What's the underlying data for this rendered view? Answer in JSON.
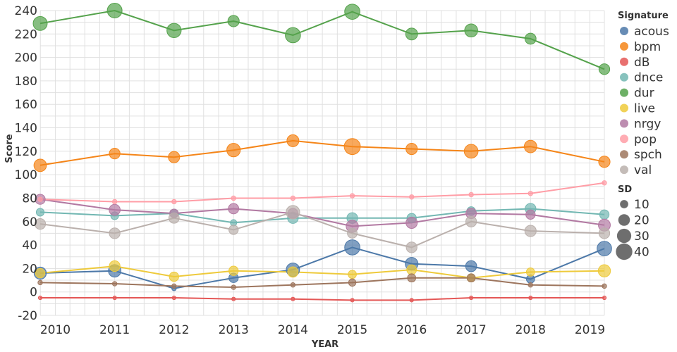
{
  "chart_data": {
    "type": "line",
    "xlabel": "YEAR",
    "ylabel": "Score",
    "ylim": [
      -20,
      240
    ],
    "y_ticks": [
      -20,
      0,
      20,
      40,
      60,
      80,
      100,
      120,
      140,
      160,
      180,
      200,
      220,
      240
    ],
    "x_ticks": [
      "2010",
      "2011",
      "2012",
      "2013",
      "2014",
      "2015",
      "2016",
      "2017",
      "2018",
      "2019"
    ],
    "grid": true,
    "legend_placement": "right",
    "color_legend_title": "Signature",
    "size_legend_title": "SD",
    "size_legend_values": [
      10,
      20,
      30,
      40
    ],
    "series": [
      {
        "name": "acous",
        "color": "#4c78a8",
        "points": [
          {
            "x": "2009-09-30",
            "y": 16,
            "sd": 22
          },
          {
            "x": "2011",
            "y": 18,
            "sd": 23
          },
          {
            "x": "2012",
            "y": 3,
            "sd": 3
          },
          {
            "x": "2013",
            "y": 12,
            "sd": 13
          },
          {
            "x": "2014",
            "y": 19,
            "sd": 26
          },
          {
            "x": "2015",
            "y": 38,
            "sd": 34
          },
          {
            "x": "2016",
            "y": 24,
            "sd": 24
          },
          {
            "x": "2017",
            "y": 22,
            "sd": 18
          },
          {
            "x": "2018",
            "y": 11,
            "sd": 10
          },
          {
            "x": "2019-03-31",
            "y": 37,
            "sd": 31
          }
        ]
      },
      {
        "name": "bpm",
        "color": "#f58518",
        "points": [
          {
            "x": "2009-09-30",
            "y": 108,
            "sd": 23
          },
          {
            "x": "2011",
            "y": 118,
            "sd": 17
          },
          {
            "x": "2012",
            "y": 115,
            "sd": 19
          },
          {
            "x": "2013",
            "y": 121,
            "sd": 27
          },
          {
            "x": "2014",
            "y": 129,
            "sd": 21
          },
          {
            "x": "2015",
            "y": 124,
            "sd": 38
          },
          {
            "x": "2016",
            "y": 122,
            "sd": 19
          },
          {
            "x": "2017",
            "y": 120,
            "sd": 28
          },
          {
            "x": "2018",
            "y": 124,
            "sd": 23
          },
          {
            "x": "2019-03-31",
            "y": 111,
            "sd": 19
          }
        ]
      },
      {
        "name": "dB",
        "color": "#e45756",
        "points": [
          {
            "x": "2009-09-30",
            "y": -5,
            "sd": 2
          },
          {
            "x": "2011",
            "y": -5,
            "sd": 2
          },
          {
            "x": "2012",
            "y": -5,
            "sd": 2
          },
          {
            "x": "2013",
            "y": -6,
            "sd": 2
          },
          {
            "x": "2014",
            "y": -6,
            "sd": 2
          },
          {
            "x": "2015",
            "y": -7,
            "sd": 2
          },
          {
            "x": "2016",
            "y": -7,
            "sd": 2
          },
          {
            "x": "2017",
            "y": -5,
            "sd": 2
          },
          {
            "x": "2018",
            "y": -5,
            "sd": 2
          },
          {
            "x": "2019-03-31",
            "y": -5,
            "sd": 2
          }
        ]
      },
      {
        "name": "dnce",
        "color": "#72b7b2",
        "points": [
          {
            "x": "2009-09-30",
            "y": 68,
            "sd": 9
          },
          {
            "x": "2011",
            "y": 65,
            "sd": 9
          },
          {
            "x": "2012",
            "y": 67,
            "sd": 11
          },
          {
            "x": "2013",
            "y": 59,
            "sd": 6
          },
          {
            "x": "2014",
            "y": 63,
            "sd": 17
          },
          {
            "x": "2015",
            "y": 63,
            "sd": 17
          },
          {
            "x": "2016",
            "y": 63,
            "sd": 13
          },
          {
            "x": "2017",
            "y": 69,
            "sd": 11
          },
          {
            "x": "2018",
            "y": 71,
            "sd": 17
          },
          {
            "x": "2019-03-31",
            "y": 66,
            "sd": 13
          }
        ]
      },
      {
        "name": "dur",
        "color": "#54a24b",
        "points": [
          {
            "x": "2009-09-30",
            "y": 229,
            "sd": 29
          },
          {
            "x": "2011",
            "y": 240,
            "sd": 32
          },
          {
            "x": "2012",
            "y": 223,
            "sd": 30
          },
          {
            "x": "2013",
            "y": 231,
            "sd": 19
          },
          {
            "x": "2014",
            "y": 219,
            "sd": 34
          },
          {
            "x": "2015",
            "y": 239,
            "sd": 34
          },
          {
            "x": "2016",
            "y": 220,
            "sd": 21
          },
          {
            "x": "2017",
            "y": 223,
            "sd": 25
          },
          {
            "x": "2018",
            "y": 216,
            "sd": 18
          },
          {
            "x": "2019-03-31",
            "y": 190,
            "sd": 17
          }
        ]
      },
      {
        "name": "live",
        "color": "#eeca3b",
        "points": [
          {
            "x": "2009-09-30",
            "y": 16,
            "sd": 13
          },
          {
            "x": "2011",
            "y": 22,
            "sd": 17
          },
          {
            "x": "2012",
            "y": 13,
            "sd": 13
          },
          {
            "x": "2013",
            "y": 18,
            "sd": 13
          },
          {
            "x": "2014",
            "y": 17,
            "sd": 16
          },
          {
            "x": "2015",
            "y": 15,
            "sd": 10
          },
          {
            "x": "2016",
            "y": 19,
            "sd": 14
          },
          {
            "x": "2017",
            "y": 12,
            "sd": 10
          },
          {
            "x": "2018",
            "y": 17,
            "sd": 10
          },
          {
            "x": "2019-03-31",
            "y": 18,
            "sd": 22
          }
        ]
      },
      {
        "name": "nrgy",
        "color": "#b279a2",
        "points": [
          {
            "x": "2009-09-30",
            "y": 79,
            "sd": 15
          },
          {
            "x": "2011",
            "y": 70,
            "sd": 18
          },
          {
            "x": "2012",
            "y": 67,
            "sd": 11
          },
          {
            "x": "2013",
            "y": 71,
            "sd": 16
          },
          {
            "x": "2014",
            "y": 67,
            "sd": 15
          },
          {
            "x": "2015",
            "y": 56,
            "sd": 22
          },
          {
            "x": "2016",
            "y": 59,
            "sd": 19
          },
          {
            "x": "2017",
            "y": 67,
            "sd": 16
          },
          {
            "x": "2018",
            "y": 66,
            "sd": 13
          },
          {
            "x": "2019-03-31",
            "y": 57,
            "sd": 21
          }
        ]
      },
      {
        "name": "pop",
        "color": "#ff9da6",
        "points": [
          {
            "x": "2009-09-30",
            "y": 79,
            "sd": 3
          },
          {
            "x": "2011",
            "y": 77,
            "sd": 3
          },
          {
            "x": "2012",
            "y": 77,
            "sd": 3
          },
          {
            "x": "2013",
            "y": 80,
            "sd": 3
          },
          {
            "x": "2014",
            "y": 80,
            "sd": 3
          },
          {
            "x": "2015",
            "y": 82,
            "sd": 3
          },
          {
            "x": "2016",
            "y": 81,
            "sd": 3
          },
          {
            "x": "2017",
            "y": 83,
            "sd": 3
          },
          {
            "x": "2018",
            "y": 84,
            "sd": 3
          },
          {
            "x": "2019-03-31",
            "y": 93,
            "sd": 3
          }
        ]
      },
      {
        "name": "spch",
        "color": "#9d755d",
        "points": [
          {
            "x": "2009-09-30",
            "y": 8,
            "sd": 3
          },
          {
            "x": "2011",
            "y": 7,
            "sd": 3
          },
          {
            "x": "2012",
            "y": 5,
            "sd": 3
          },
          {
            "x": "2013",
            "y": 4,
            "sd": 3
          },
          {
            "x": "2014",
            "y": 6,
            "sd": 3
          },
          {
            "x": "2015",
            "y": 8,
            "sd": 8
          },
          {
            "x": "2016",
            "y": 12,
            "sd": 10
          },
          {
            "x": "2017",
            "y": 12,
            "sd": 10
          },
          {
            "x": "2018",
            "y": 6,
            "sd": 3
          },
          {
            "x": "2019-03-31",
            "y": 5,
            "sd": 3
          }
        ]
      },
      {
        "name": "val",
        "color": "#bab0ac",
        "points": [
          {
            "x": "2009-09-30",
            "y": 58,
            "sd": 17
          },
          {
            "x": "2011",
            "y": 50,
            "sd": 17
          },
          {
            "x": "2012",
            "y": 63,
            "sd": 16
          },
          {
            "x": "2013",
            "y": 53,
            "sd": 13
          },
          {
            "x": "2014",
            "y": 68,
            "sd": 27
          },
          {
            "x": "2015",
            "y": 50,
            "sd": 14
          },
          {
            "x": "2016",
            "y": 38,
            "sd": 17
          },
          {
            "x": "2017",
            "y": 60,
            "sd": 17
          },
          {
            "x": "2018",
            "y": 52,
            "sd": 19
          },
          {
            "x": "2019-03-31",
            "y": 50,
            "sd": 17
          }
        ]
      }
    ]
  }
}
